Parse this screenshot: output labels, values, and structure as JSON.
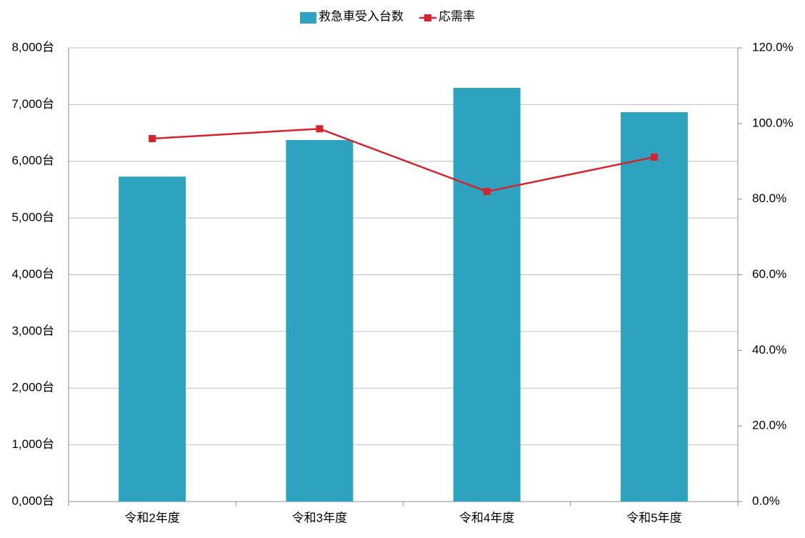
{
  "chart_data": {
    "type": "bar",
    "categories": [
      "令和2年度",
      "令和3年度",
      "令和4年度",
      "令和5年度"
    ],
    "series": [
      {
        "name": "救急車受入台数",
        "type": "bar",
        "color": "#2ea3bf",
        "values": [
          5730,
          6375,
          7295,
          6866
        ]
      },
      {
        "name": "応需率",
        "type": "line",
        "axis": "y2",
        "color": "#d7212b",
        "values": [
          96.0,
          98.6,
          82.0,
          91.1
        ]
      }
    ],
    "ylim": [
      0,
      8000
    ],
    "yticks": [
      {
        "value": 0,
        "label": "0,000台"
      },
      {
        "value": 1000,
        "label": "1,000台"
      },
      {
        "value": 2000,
        "label": "2,000台"
      },
      {
        "value": 3000,
        "label": "3,000台"
      },
      {
        "value": 4000,
        "label": "4,000台"
      },
      {
        "value": 5000,
        "label": "5,000台"
      },
      {
        "value": 6000,
        "label": "6,000台"
      },
      {
        "value": 7000,
        "label": "7,000台"
      },
      {
        "value": 8000,
        "label": "8,000台"
      }
    ],
    "y2lim": [
      0,
      120
    ],
    "y2ticks": [
      {
        "value": 0,
        "label": "0.0%"
      },
      {
        "value": 20,
        "label": "20.0%"
      },
      {
        "value": 40,
        "label": "40.0%"
      },
      {
        "value": 60,
        "label": "60.0%"
      },
      {
        "value": 80,
        "label": "80.0%"
      },
      {
        "value": 100,
        "label": "100.0%"
      },
      {
        "value": 120,
        "label": "120.0%"
      }
    ],
    "grid": true,
    "legend": "top"
  }
}
